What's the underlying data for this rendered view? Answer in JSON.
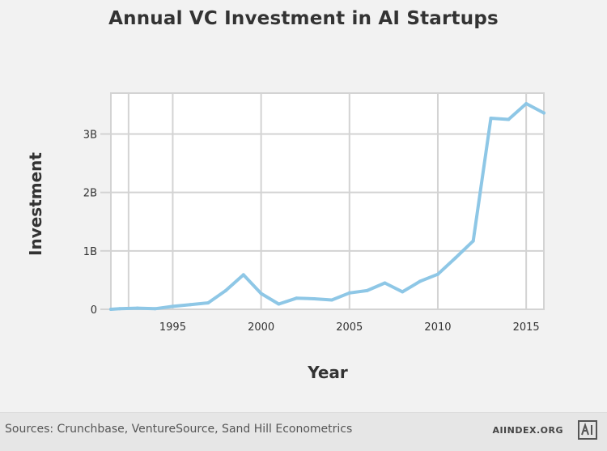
{
  "chart_data": {
    "type": "line",
    "title": "Annual VC Investment in AI Startups",
    "xlabel": "Year",
    "ylabel": "Investment",
    "xlim": [
      1991.5,
      2016
    ],
    "ylim": [
      0,
      3.7
    ],
    "x_ticks": [
      1995,
      2000,
      2005,
      2010,
      2015
    ],
    "y_ticks": [
      0,
      1,
      2,
      3
    ],
    "y_tick_labels": [
      "0",
      "1B",
      "2B",
      "3B"
    ],
    "x_grid": [
      1992.5,
      1995,
      2000,
      2005,
      2010,
      2015
    ],
    "grid": true,
    "line_color": "#8ec7e6",
    "series": [
      {
        "x": [
          1991.5,
          1992,
          1993,
          1994,
          1995,
          1996,
          1997,
          1998,
          1999,
          2000,
          2001,
          2002,
          2003,
          2004,
          2005,
          2006,
          2007,
          2008,
          2009,
          2010,
          2011,
          2012,
          2013,
          2014,
          2015,
          2016
        ],
        "values": [
          0.0,
          0.01,
          0.02,
          0.01,
          0.05,
          0.08,
          0.11,
          0.32,
          0.59,
          0.27,
          0.09,
          0.19,
          0.18,
          0.16,
          0.28,
          0.32,
          0.45,
          0.3,
          0.48,
          0.6,
          0.88,
          1.17,
          3.27,
          3.25,
          3.52,
          3.36
        ]
      }
    ]
  },
  "footer": {
    "sources": "Sources: Crunchbase, VentureSource, Sand Hill Econometrics",
    "brand": "AIINDEX.ORG"
  }
}
